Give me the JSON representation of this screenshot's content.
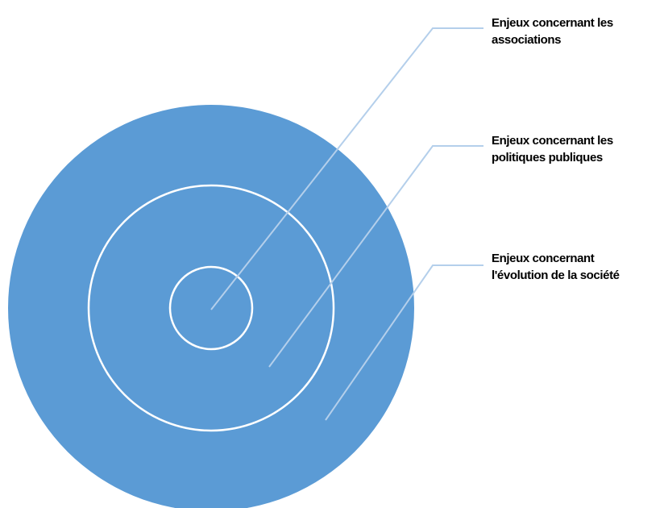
{
  "diagram": {
    "type": "concentric-circles",
    "colors": {
      "fill": "#5b9bd5",
      "ring": "#ffffff",
      "connector": "#b4cfeb",
      "text": "#000000"
    },
    "labels": [
      {
        "line1": "Enjeux concernant les",
        "line2": "associations"
      },
      {
        "line1": "Enjeux concernant les",
        "line2": "politiques publiques"
      },
      {
        "line1": "Enjeux concernant",
        "line2": "l'évolution de la société"
      }
    ]
  }
}
